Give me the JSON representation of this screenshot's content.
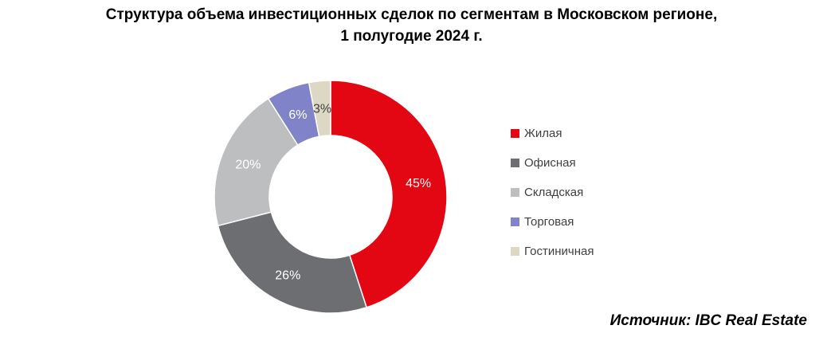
{
  "title": {
    "line1": "Структура объема инвестиционных сделок по сегментам в Московском регионе,",
    "line2": "1 полугодие 2024 г."
  },
  "source": "Источник: IBC Real Estate",
  "colors": {
    "background": "#FFFFFF",
    "title_text": "#000000",
    "legend_text": "#404040",
    "segment_separator": "#FFFFFF"
  },
  "chart_data": {
    "type": "pie",
    "subtype": "donut",
    "title": "Структура объема инвестиционных сделок по сегментам в Московском регионе, 1 полугодие 2024 г.",
    "unit": "%",
    "categories": [
      "Жилая",
      "Офисная",
      "Складская",
      "Торговая",
      "Гостиничная"
    ],
    "values": [
      45,
      26,
      20,
      6,
      3
    ],
    "labels": [
      "45%",
      "26%",
      "20%",
      "6%",
      "3%"
    ],
    "segment_colors": [
      "#E30613",
      "#6D6E71",
      "#BCBEC0",
      "#8083C8",
      "#DDD8C4"
    ],
    "label_colors": [
      "#FFFFFF",
      "#FFFFFF",
      "#FFFFFF",
      "#FFFFFF",
      "#3F3F3F"
    ],
    "start_angle_deg": 0,
    "direction": "clockwise",
    "inner_radius_ratio": 0.53,
    "legend_position": "right",
    "data_labels": "inside"
  }
}
